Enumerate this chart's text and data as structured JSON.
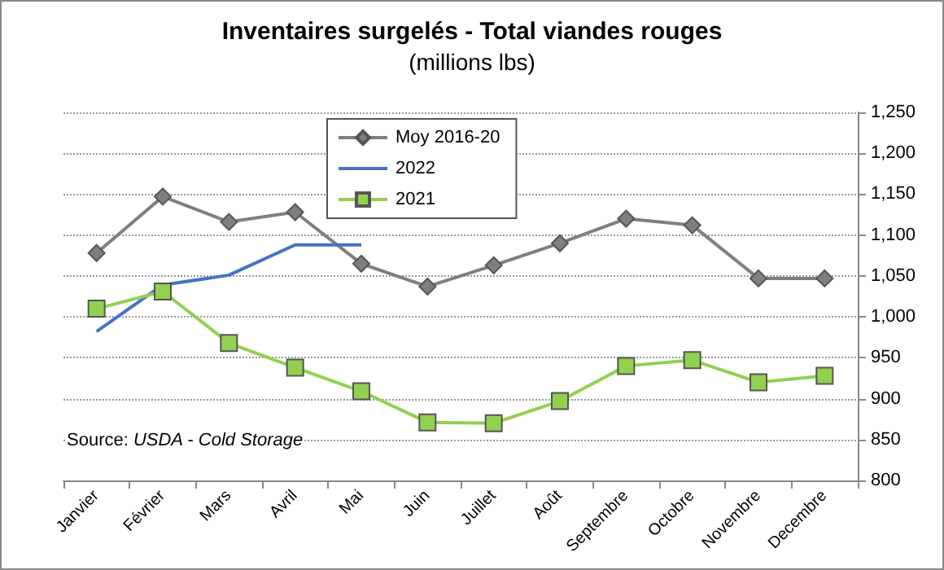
{
  "chart_data": {
    "type": "line",
    "title": "Inventaires surgelés - Total viandes rouges",
    "subtitle": "(millions lbs)",
    "categories": [
      "Janvier",
      "Février",
      "Mars",
      "Avril",
      "Mai",
      "Juin",
      "Juillet",
      "Août",
      "Septembre",
      "Octobre",
      "Novembre",
      "Decembre"
    ],
    "series": [
      {
        "name": "Moy 2016-20",
        "color": "#7f7f7f",
        "marker": "diamond",
        "values": [
          1078,
          1147,
          1116,
          1128,
          1065,
          1037,
          1063,
          1090,
          1120,
          1112,
          1047,
          1047
        ]
      },
      {
        "name": "2022",
        "color": "#4472c4",
        "marker": "none",
        "values": [
          982,
          1039,
          1051,
          1088,
          1088,
          null,
          null,
          null,
          null,
          null,
          null,
          null
        ]
      },
      {
        "name": "2021",
        "color": "#92d050",
        "marker": "square",
        "values": [
          1010,
          1031,
          968,
          938,
          909,
          871,
          870,
          897,
          940,
          947,
          920,
          928
        ]
      }
    ],
    "ylim": [
      800,
      1250
    ],
    "yticks": [
      800,
      850,
      900,
      950,
      {
        "value": 1000,
        "label": "1,000"
      },
      {
        "value": 1050,
        "label": "1,050"
      },
      {
        "value": 1100,
        "label": "1,100"
      },
      {
        "value": 1150,
        "label": "1,150"
      },
      {
        "value": 1200,
        "label": "1,200"
      },
      {
        "value": 1250,
        "label": "1,250"
      }
    ],
    "grid": "y",
    "legend": "top left",
    "annotations": [
      "Source: USDA - Cold Storage"
    ]
  }
}
